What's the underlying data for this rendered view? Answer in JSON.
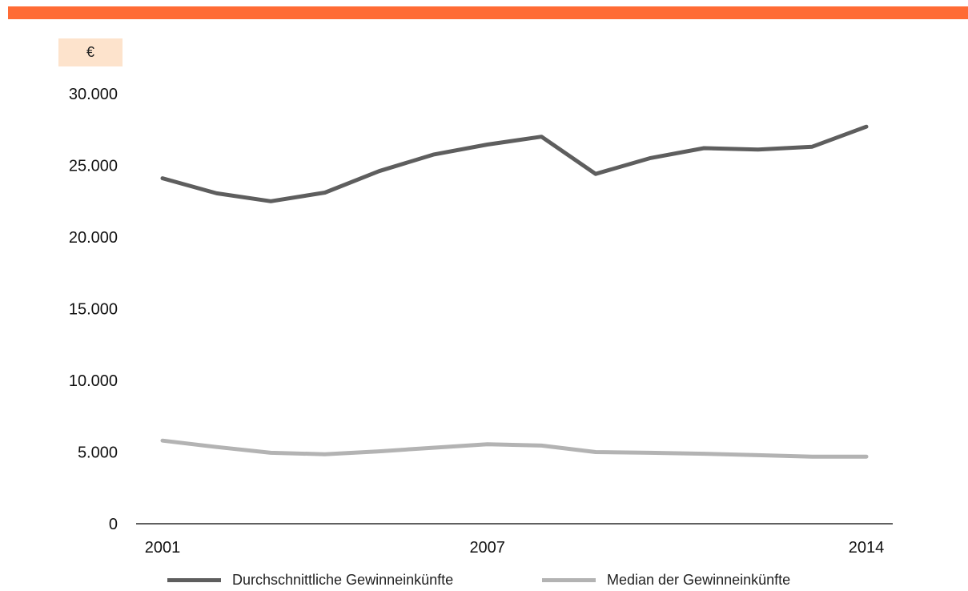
{
  "colors": {
    "accent_bar": "#ff6b35",
    "unit_badge_bg": "#fde3cc",
    "series_mean": "#5e5e5e",
    "series_median": "#b3b3b3",
    "axis": "#000000"
  },
  "unit_label": "€",
  "legend": {
    "mean_label": "Durchschnittliche Gewinneinkünfte",
    "median_label": "Median der Gewinneinkünfte"
  },
  "chart_data": {
    "type": "line",
    "title": "",
    "xlabel": "",
    "ylabel": "€",
    "x": [
      2001,
      2002,
      2003,
      2004,
      2005,
      2006,
      2007,
      2008,
      2009,
      2010,
      2011,
      2012,
      2013,
      2014
    ],
    "x_tick_labels": [
      "2001",
      "2007",
      "2014"
    ],
    "x_tick_values": [
      2001,
      2007,
      2014
    ],
    "ylim": [
      0,
      30000
    ],
    "y_ticks": [
      0,
      5000,
      10000,
      15000,
      20000,
      25000,
      30000
    ],
    "y_tick_labels": [
      "0",
      "5.000",
      "10.000",
      "15.000",
      "20.000",
      "25.000",
      "30.000"
    ],
    "grid": false,
    "legend_position": "bottom",
    "series": [
      {
        "name": "Durchschnittliche Gewinneinkünfte",
        "color": "#5e5e5e",
        "values": [
          24100,
          23050,
          22500,
          23100,
          24600,
          25750,
          26450,
          27000,
          24400,
          25500,
          26200,
          26100,
          26300,
          27700
        ]
      },
      {
        "name": "Median der Gewinneinkünfte",
        "color": "#b3b3b3",
        "values": [
          5800,
          5350,
          4950,
          4850,
          5050,
          5300,
          5550,
          5450,
          5000,
          4950,
          4880,
          4780,
          4680,
          4680
        ]
      }
    ]
  }
}
